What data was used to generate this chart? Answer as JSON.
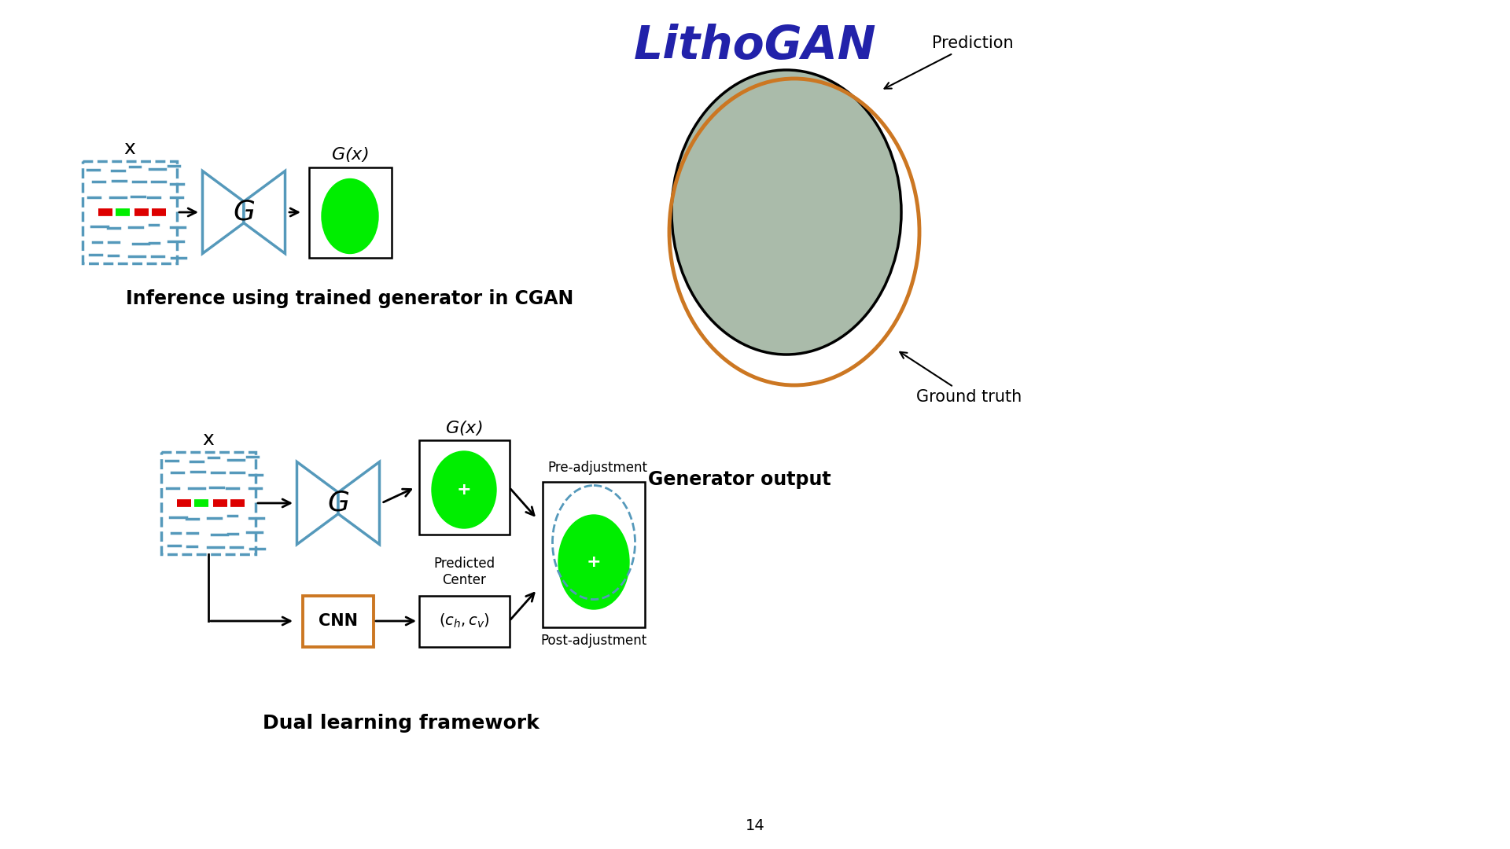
{
  "title": "LithoGAN",
  "title_color": "#2222aa",
  "title_fontsize": 42,
  "bg_color": "#ffffff",
  "top_label_inference": "Inference using trained generator in CGAN",
  "top_label_generator": "Generator output",
  "bottom_label": "Dual learning framework",
  "page_number": "14",
  "green_color": "#00ee00",
  "blue_color": "#5599bb",
  "orange_color": "#cc7722",
  "red_color": "#dd0000",
  "light_green": "#aabbaa"
}
